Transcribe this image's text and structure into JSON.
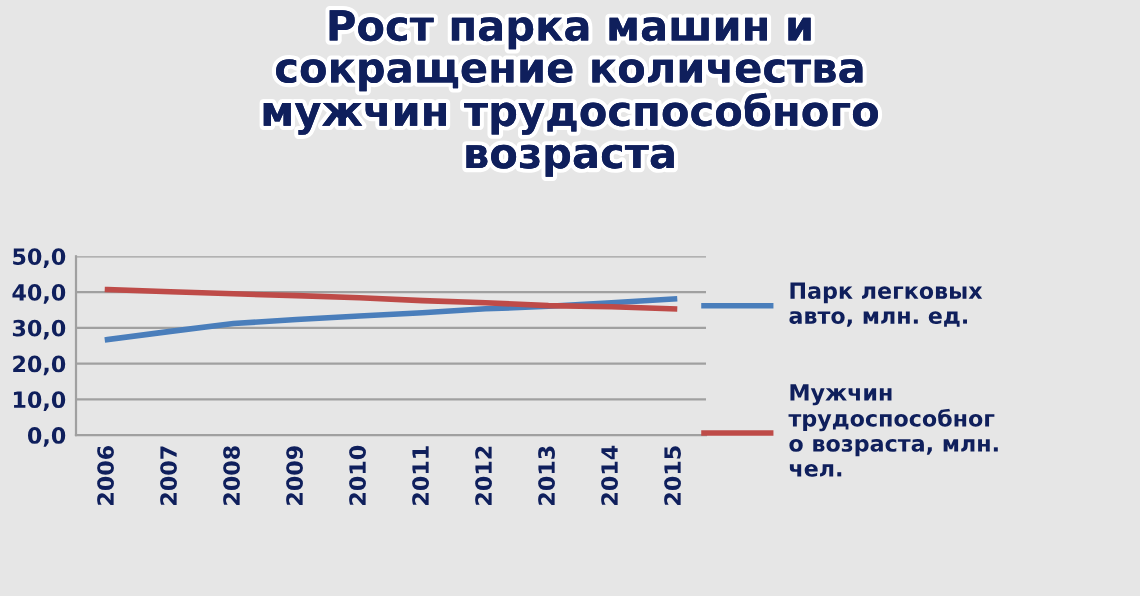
{
  "chart_data": {
    "type": "line",
    "title": "Рост парка машин и\nсокращение количества\nмужчин трудоспособного\nвозраста",
    "categories": [
      "2006",
      "2007",
      "2008",
      "2009",
      "2010",
      "2011",
      "2012",
      "2013",
      "2014",
      "2015"
    ],
    "series": [
      {
        "name": "Парк легковых\nавто, млн. ед.",
        "color": "#4a7ebb",
        "values": [
          26.7,
          29.0,
          31.2,
          32.3,
          33.3,
          34.2,
          35.3,
          36.0,
          37.0,
          38.1
        ]
      },
      {
        "name": "Мужчин\nтрудоспособног\nо возраста, млн.\nчел.",
        "color": "#be4b48",
        "values": [
          40.7,
          40.1,
          39.5,
          39.0,
          38.4,
          37.6,
          37.0,
          36.2,
          35.9,
          35.3
        ]
      }
    ],
    "ylim": [
      0,
      50
    ],
    "yticks": [
      {
        "value": 0,
        "label": "0,0"
      },
      {
        "value": 10,
        "label": "10,0"
      },
      {
        "value": 20,
        "label": "20,0"
      },
      {
        "value": 30,
        "label": "30,0"
      },
      {
        "value": 40,
        "label": "40,0"
      },
      {
        "value": 50,
        "label": "50,0"
      }
    ],
    "grid": "y",
    "legend": "right",
    "marker": "none",
    "line_style": "solid"
  }
}
